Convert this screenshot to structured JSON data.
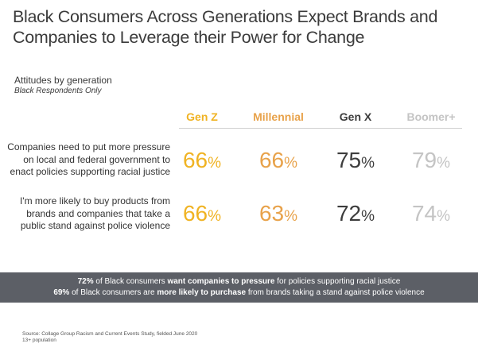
{
  "title_lines": [
    "Black Consumers Across Generations Expect Brands and",
    "Companies to Leverage their Power for Change"
  ],
  "subtitle": "Attitudes by generation",
  "subtitle_note": "Black Respondents Only",
  "colors": {
    "gen_z": "#f0b323",
    "millennial": "#e8a24a",
    "gen_x": "#3d3d3d",
    "boomer": "#c4c4c4",
    "banner": "#5c5f66"
  },
  "chart_data": {
    "type": "table",
    "unit": "%",
    "columns": [
      "Gen Z",
      "Millennial",
      "Gen X",
      "Boomer+"
    ],
    "rows": [
      {
        "label_lines": [
          "Companies need to put more pressure",
          "on local and federal government to",
          "enact policies supporting racial justice"
        ],
        "values": [
          66,
          66,
          75,
          79
        ]
      },
      {
        "label_lines": [
          "I'm more likely to buy products from",
          "brands and companies that take a",
          "public stand against police violence"
        ],
        "values": [
          66,
          63,
          72,
          74
        ]
      }
    ]
  },
  "banner": {
    "line1": {
      "a": "72%",
      "b": " of Black consumers ",
      "c": "want companies to pressure",
      "d": " for policies supporting racial justice"
    },
    "line2": {
      "a": "69%",
      "b": " of Black consumers are ",
      "c": "more likely to purchase",
      "d": " from brands taking a stand against police violence"
    }
  },
  "source_lines": [
    "Source: Collage Group Racism and Current Events Study, fielded June 2020",
    "13+ population"
  ]
}
